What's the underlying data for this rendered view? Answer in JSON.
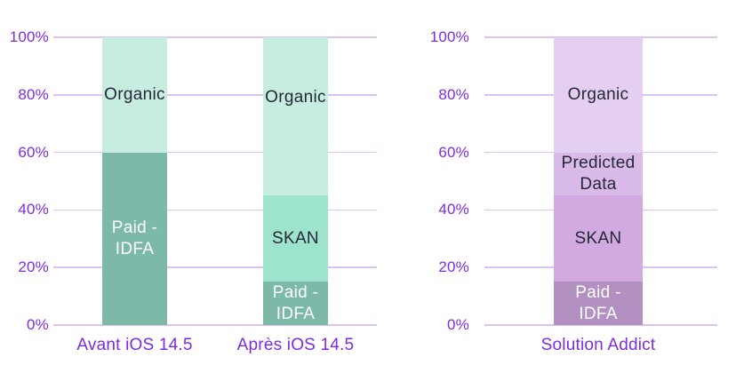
{
  "style": {
    "background": "#ffffff",
    "axis_text": "#7e2ce0",
    "grid": "#ddc2f3",
    "segment_text_dark": "#232838",
    "segment_text_light": "#ffffff"
  },
  "chart_data": [
    {
      "type": "bar",
      "stacked": true,
      "title": "",
      "xlabel": "",
      "ylabel": "",
      "ylim": [
        0,
        100
      ],
      "grid": true,
      "yticks": [
        "0%",
        "20%",
        "40%",
        "60%",
        "80%",
        "100%"
      ],
      "categories": [
        "Avant iOS 14.5",
        "Après iOS 14.5"
      ],
      "series": [
        {
          "name": "Paid - IDFA",
          "values": [
            60,
            15
          ]
        },
        {
          "name": "SKAN",
          "values": [
            0,
            30
          ]
        },
        {
          "name": "Organic",
          "values": [
            40,
            55
          ]
        }
      ],
      "palette": {
        "Organic": "#c6eddf",
        "SKAN": "#9ee4cc",
        "Paid - IDFA": "#7db9a9"
      },
      "display_lines": {
        "Paid - IDFA": "Paid -\nIDFA"
      },
      "light_text_series": [
        "Paid - IDFA"
      ],
      "label_offsets": [
        {
          "category": 1,
          "series": "Organic",
          "dy": -21
        }
      ]
    },
    {
      "type": "bar",
      "stacked": true,
      "title": "",
      "xlabel": "",
      "ylabel": "",
      "ylim": [
        0,
        100
      ],
      "grid": true,
      "yticks": [
        "0%",
        "20%",
        "40%",
        "60%",
        "80%",
        "100%"
      ],
      "categories": [
        "Solution Addict"
      ],
      "series": [
        {
          "name": "Paid - IDFA",
          "values": [
            15
          ]
        },
        {
          "name": "SKAN",
          "values": [
            30
          ]
        },
        {
          "name": "Predicted Data",
          "values": [
            15
          ]
        },
        {
          "name": "Organic",
          "values": [
            40
          ]
        }
      ],
      "palette": {
        "Organic": "#e4cff0",
        "Predicted Data": "#dabae9",
        "SKAN": "#d2a9e1",
        "Paid - IDFA": "#b290c1"
      },
      "display_lines": {
        "Paid - IDFA": "Paid -\nIDFA",
        "Predicted Data": "Predicted\nData"
      },
      "light_text_series": [
        "Paid - IDFA"
      ],
      "label_offsets": []
    }
  ]
}
